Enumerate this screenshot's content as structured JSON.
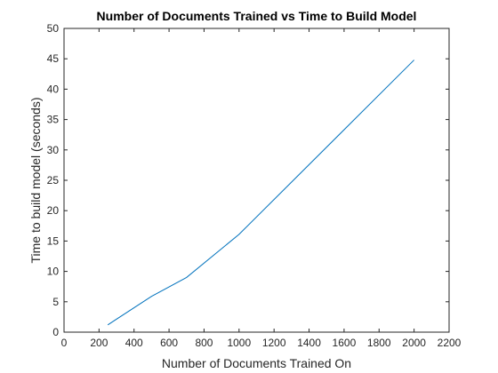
{
  "chart_data": {
    "type": "line",
    "title": "Number of Documents Trained vs Time to Build Model",
    "xlabel": "Number of Documents Trained On",
    "ylabel": "Time to build model (seconds)",
    "xlim": [
      0,
      2200
    ],
    "ylim": [
      0,
      50
    ],
    "xticks": [
      0,
      200,
      400,
      600,
      800,
      1000,
      1200,
      1400,
      1600,
      1800,
      2000,
      2200
    ],
    "yticks": [
      0,
      5,
      10,
      15,
      20,
      25,
      30,
      35,
      40,
      45,
      50
    ],
    "grid": false,
    "series": [
      {
        "color": "#0072BD",
        "x": [
          250,
          500,
          700,
          1000,
          2000
        ],
        "y": [
          1.2,
          5.9,
          9.0,
          16.1,
          44.8
        ]
      }
    ]
  }
}
